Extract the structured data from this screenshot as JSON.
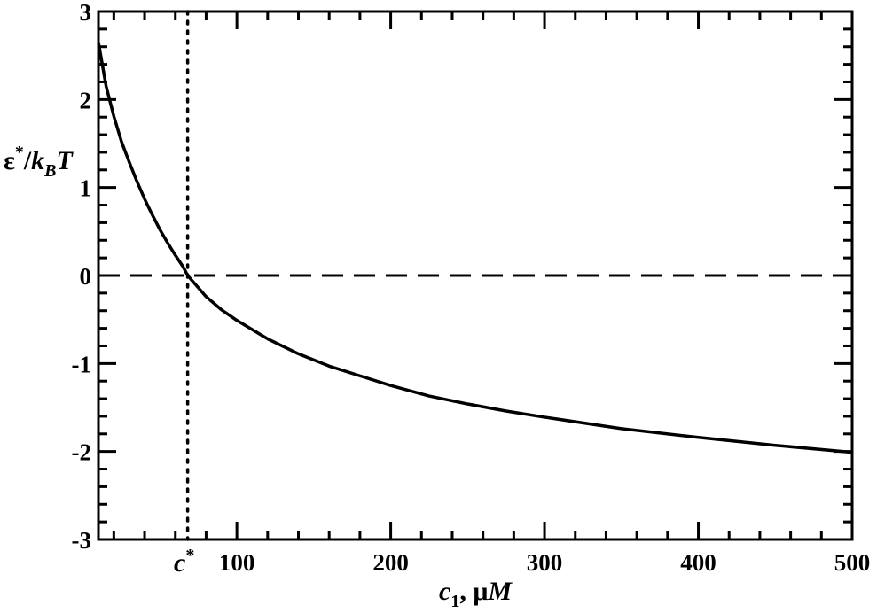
{
  "chart_data": {
    "type": "line",
    "xlabel": {
      "main": "c",
      "sub": "1",
      "rest": ", μ",
      "unit": "M"
    },
    "ylabel": {
      "eps": "ε",
      "star": "*",
      "slash": "/",
      "k": "k",
      "sub": "B",
      "T": "T"
    },
    "xlim": [
      10,
      500
    ],
    "ylim": [
      -3,
      3
    ],
    "x_ticks": [
      100,
      200,
      300,
      400,
      500
    ],
    "x_tick_labels": [
      "100",
      "200",
      "300",
      "400",
      "500"
    ],
    "y_ticks": [
      -3,
      -2,
      -1,
      0,
      1,
      2,
      3
    ],
    "y_tick_labels": [
      "-3",
      "-2",
      "-1",
      "0",
      "1",
      "2",
      "3"
    ],
    "grid": false,
    "reference_lines": [
      {
        "orientation": "horizontal",
        "value": 0,
        "style": "dashed"
      },
      {
        "orientation": "vertical",
        "value": 68,
        "style": "dotted"
      }
    ],
    "annotation": {
      "text": "c",
      "superscript": "*",
      "x": 68
    },
    "series": [
      {
        "style": "solid",
        "color": "#000000",
        "x": [
          10,
          15,
          20,
          25,
          30,
          35,
          40,
          45,
          50,
          55,
          60,
          65,
          68,
          70,
          80,
          90,
          100,
          120,
          140,
          160,
          180,
          200,
          225,
          250,
          275,
          300,
          350,
          400,
          450,
          500
        ],
        "y": [
          2.65,
          2.15,
          1.81,
          1.52,
          1.29,
          1.07,
          0.87,
          0.69,
          0.52,
          0.37,
          0.23,
          0.1,
          0.0,
          -0.04,
          -0.24,
          -0.39,
          -0.51,
          -0.72,
          -0.89,
          -1.03,
          -1.14,
          -1.25,
          -1.37,
          -1.46,
          -1.54,
          -1.61,
          -1.74,
          -1.84,
          -1.93,
          -2.01
        ]
      }
    ]
  }
}
